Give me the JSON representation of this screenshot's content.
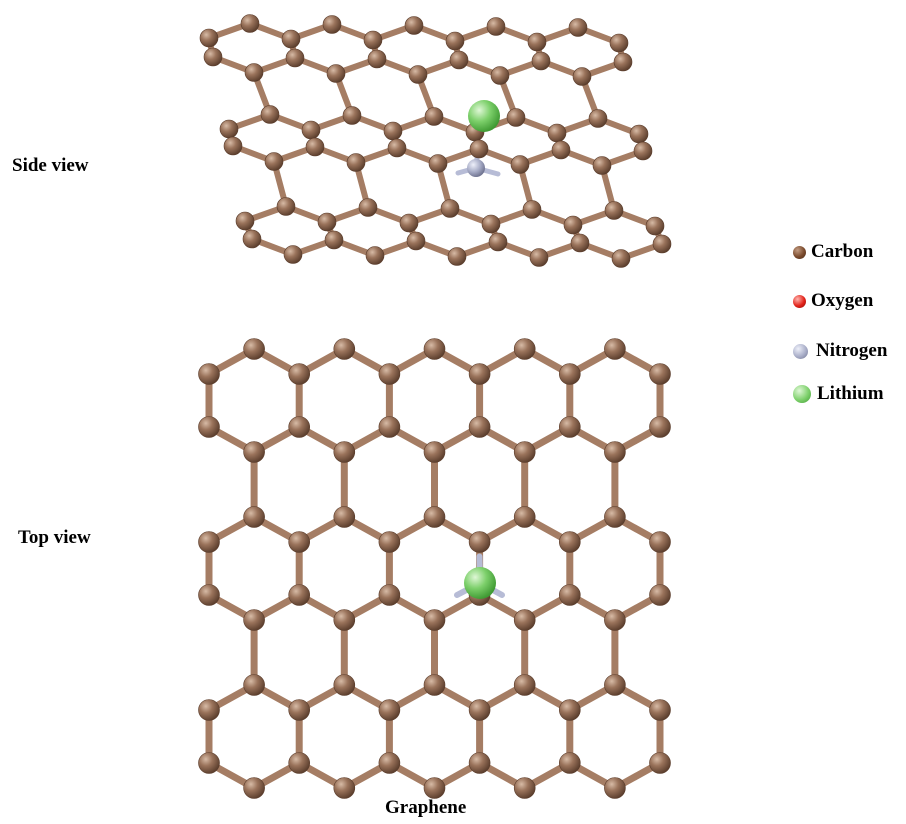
{
  "views": {
    "side_label": "Side view",
    "top_label": "Top view"
  },
  "caption": "Graphene",
  "legend": [
    {
      "name": "Carbon",
      "color": "#7a4a2c"
    },
    {
      "name": "Oxygen",
      "color": "#e2231a"
    },
    {
      "name": "Nitrogen",
      "color": "#a9aec8"
    },
    {
      "name": "Lithium",
      "color": "#6cc45c"
    }
  ],
  "colors": {
    "carbon": "#8a6650",
    "carbon_highlight": "#c9ab96",
    "bond": "#a57d64",
    "nitrogen": "#a9aec8",
    "lithium": "#6cc45c"
  },
  "structure": {
    "lattice": "hexagonal",
    "dopant": "Nitrogen",
    "adsorbate": "Lithium"
  }
}
